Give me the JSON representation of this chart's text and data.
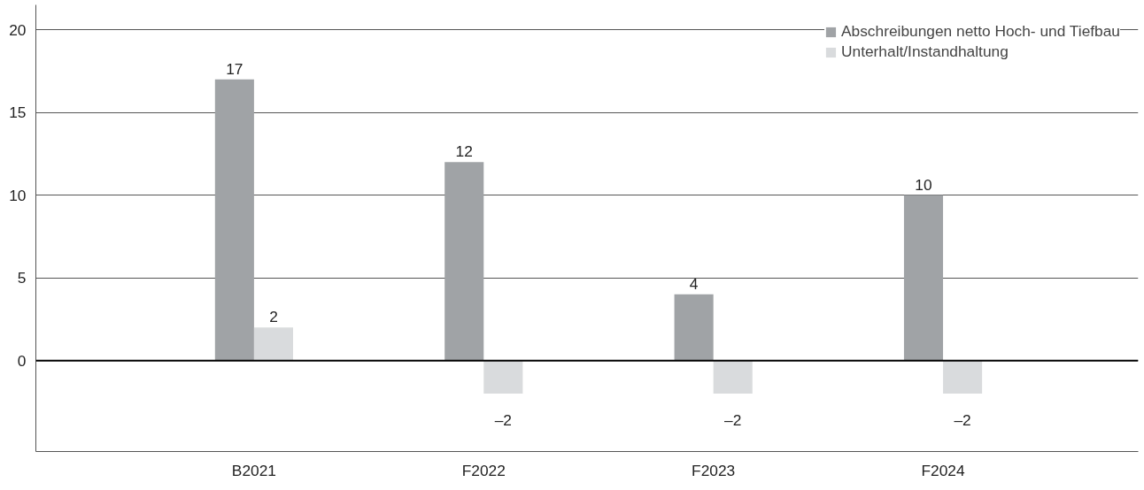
{
  "chart_data": {
    "type": "bar",
    "categories": [
      "B2021",
      "F2022",
      "F2023",
      "F2024"
    ],
    "series": [
      {
        "name": "Abschreibungen netto Hoch- und Tiefbau",
        "color": "#a0a3a6",
        "values": [
          17,
          12,
          4,
          10
        ],
        "value_labels": [
          "17",
          "12",
          "4",
          "10"
        ]
      },
      {
        "name": "Unterhalt/Instandhaltung",
        "color": "#d9dbdd",
        "values": [
          2,
          -2,
          -2,
          -2
        ],
        "value_labels": [
          "2",
          "–2",
          "–2",
          "–2"
        ]
      }
    ],
    "ylim": [
      -5.5,
      21.5
    ],
    "yticks": [
      0,
      5,
      10,
      15,
      20
    ],
    "grid": "y",
    "legend": "top right"
  }
}
